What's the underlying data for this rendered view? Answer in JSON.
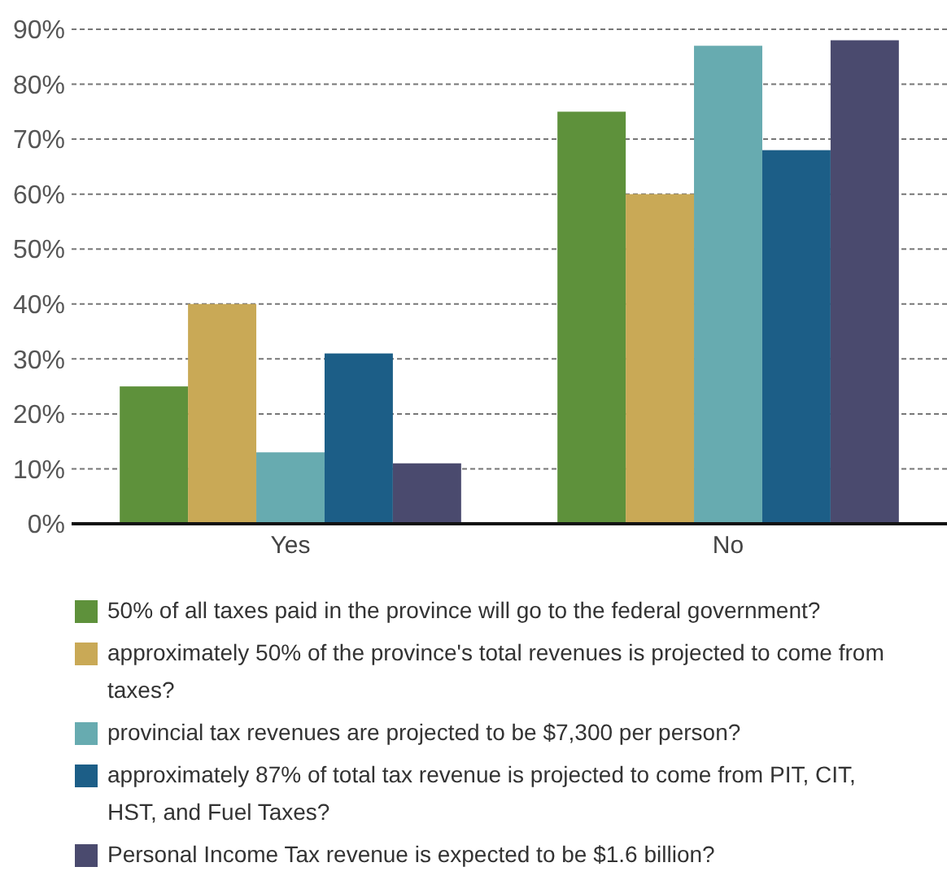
{
  "chart_data": {
    "type": "bar",
    "categories": [
      "Yes",
      "No"
    ],
    "series": [
      {
        "name": "50% of all taxes paid in the province will go to the federal government?",
        "color": "#5e913b",
        "values": [
          25,
          75
        ]
      },
      {
        "name": "approximately 50% of the province's total revenues is projected to come from taxes?",
        "color": "#c9a956",
        "values": [
          40,
          60
        ]
      },
      {
        "name": "provincial tax revenues are projected to be $7,300 per person?",
        "color": "#67abb0",
        "values": [
          13,
          87
        ]
      },
      {
        "name": "approximately 87% of total tax revenue is projected to come from PIT, CIT, HST, and Fuel Taxes?",
        "color": "#1c5e87",
        "values": [
          31,
          68
        ]
      },
      {
        "name": "Personal Income Tax revenue is expected to be $1.6 billion?",
        "color": "#4a4a6e",
        "values": [
          11,
          88
        ]
      }
    ],
    "ylim": [
      0,
      90
    ],
    "yticks": [
      {
        "value": 0,
        "label": "0%"
      },
      {
        "value": 10,
        "label": "10%"
      },
      {
        "value": 20,
        "label": "20%"
      },
      {
        "value": 30,
        "label": "30%"
      },
      {
        "value": 40,
        "label": "40%"
      },
      {
        "value": 50,
        "label": "50%"
      },
      {
        "value": 60,
        "label": "60%"
      },
      {
        "value": 70,
        "label": "70%"
      },
      {
        "value": 80,
        "label": "80%"
      },
      {
        "value": 90,
        "label": "90%"
      }
    ],
    "grid": "y",
    "legend": "bottom"
  }
}
